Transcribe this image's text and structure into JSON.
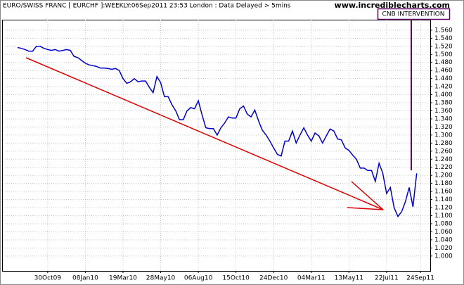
{
  "chart_data": {
    "type": "line",
    "title": "EURO/SWISS FRANC [ EURCHF ]:WEEKLY:06Sep2011 23:53 London : Data Delayed > 5mins",
    "subtitle": "www.incrediblecharts.com",
    "annotation": "CNB INTERVENTION",
    "color": "#0000cc",
    "grid": true,
    "categories": [
      null,
      null,
      null,
      null,
      null,
      null,
      null,
      null,
      "30Oct09",
      null,
      null,
      null,
      null,
      null,
      null,
      null,
      null,
      null,
      "08Jan10",
      null,
      null,
      null,
      null,
      null,
      null,
      null,
      null,
      null,
      "19Mar10",
      null,
      null,
      null,
      null,
      null,
      null,
      null,
      null,
      null,
      "28May10",
      null,
      null,
      null,
      null,
      null,
      null,
      null,
      null,
      null,
      "06Aug10",
      null,
      null,
      null,
      null,
      null,
      null,
      null,
      null,
      null,
      "15Oct10",
      null,
      null,
      null,
      null,
      null,
      null,
      null,
      null,
      null,
      "24Dec10",
      null,
      null,
      null,
      null,
      null,
      null,
      null,
      null,
      null,
      "04Mar11",
      null,
      null,
      null,
      null,
      null,
      null,
      null,
      null,
      null,
      "13May11",
      null,
      null,
      null,
      null,
      null,
      null,
      null,
      null,
      null,
      "22Jul11",
      null,
      null,
      null,
      null,
      null,
      null,
      null,
      null,
      "24Sep11"
    ],
    "values": [
      1.517,
      1.515,
      1.512,
      1.508,
      1.508,
      1.52,
      1.52,
      1.515,
      1.512,
      1.51,
      1.512,
      1.508,
      1.51,
      1.512,
      1.51,
      1.495,
      1.492,
      1.485,
      1.478,
      1.474,
      1.472,
      1.47,
      1.466,
      1.466,
      1.465,
      1.463,
      1.465,
      1.46,
      1.44,
      1.428,
      1.432,
      1.44,
      1.432,
      1.434,
      1.434,
      1.418,
      1.405,
      1.445,
      1.43,
      1.395,
      1.395,
      1.375,
      1.36,
      1.338,
      1.338,
      1.36,
      1.368,
      1.365,
      1.385,
      1.35,
      1.318,
      1.316,
      1.316,
      1.3,
      1.318,
      1.33,
      1.345,
      1.342,
      1.342,
      1.365,
      1.372,
      1.352,
      1.345,
      1.362,
      1.335,
      1.312,
      1.3,
      1.285,
      1.268,
      1.252,
      1.248,
      1.285,
      1.285,
      1.31,
      1.28,
      1.3,
      1.318,
      1.3,
      1.285,
      1.305,
      1.298,
      1.28,
      1.298,
      1.315,
      1.31,
      1.29,
      1.288,
      1.268,
      1.262,
      1.25,
      1.24,
      1.218,
      1.218,
      1.212,
      1.212,
      1.185,
      1.23,
      1.205,
      1.155,
      1.17,
      1.12,
      1.098,
      1.11,
      1.135,
      1.17,
      1.122,
      1.205,
      null
    ],
    "ylim": [
      0.963,
      1.586
    ],
    "yticks": [
      {
        "value": 1.0,
        "label": "1.000"
      },
      {
        "value": 1.02,
        "label": "1.020"
      },
      {
        "value": 1.04,
        "label": "1.040"
      },
      {
        "value": 1.06,
        "label": "1.060"
      },
      {
        "value": 1.08,
        "label": "1.080"
      },
      {
        "value": 1.1,
        "label": "1.100"
      },
      {
        "value": 1.12,
        "label": "1.120"
      },
      {
        "value": 1.14,
        "label": "1.140"
      },
      {
        "value": 1.16,
        "label": "1.160"
      },
      {
        "value": 1.18,
        "label": "1.180"
      },
      {
        "value": 1.2,
        "label": "1.200"
      },
      {
        "value": 1.22,
        "label": "1.220"
      },
      {
        "value": 1.24,
        "label": "1.240"
      },
      {
        "value": 1.26,
        "label": "1.260"
      },
      {
        "value": 1.28,
        "label": "1.280"
      },
      {
        "value": 1.3,
        "label": "1.300"
      },
      {
        "value": 1.32,
        "label": "1.320"
      },
      {
        "value": 1.34,
        "label": "1.340"
      },
      {
        "value": 1.36,
        "label": "1.360"
      },
      {
        "value": 1.38,
        "label": "1.380"
      },
      {
        "value": 1.4,
        "label": "1.400"
      },
      {
        "value": 1.42,
        "label": "1.420"
      },
      {
        "value": 1.44,
        "label": "1.440"
      },
      {
        "value": 1.46,
        "label": "1.460"
      },
      {
        "value": 1.48,
        "label": "1.480"
      },
      {
        "value": 1.5,
        "label": "1.500"
      },
      {
        "value": 1.52,
        "label": "1.520"
      },
      {
        "value": 1.54,
        "label": "1.540"
      },
      {
        "value": 1.56,
        "label": "1.560"
      }
    ]
  }
}
